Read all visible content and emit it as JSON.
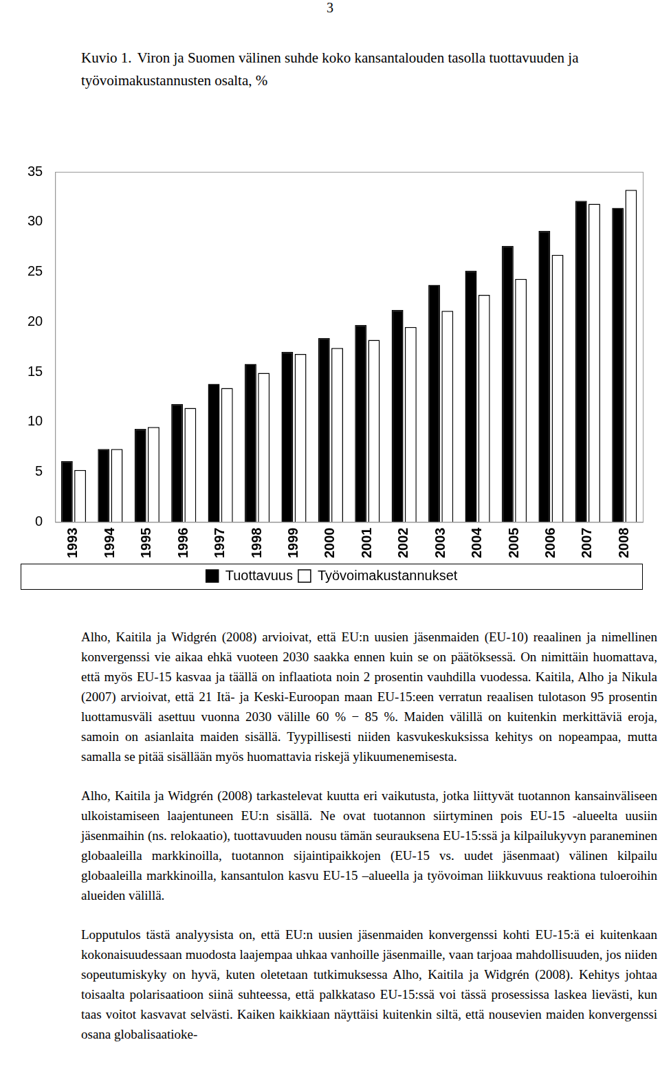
{
  "page": {
    "number": "3"
  },
  "caption": {
    "label": "Kuvio 1.",
    "text": "Viron ja Suomen välinen suhde koko kansantalouden tasolla tuottavuuden ja työvoimakustannusten osalta, %"
  },
  "chart_data": {
    "type": "bar",
    "categories": [
      "1993",
      "1994",
      "1995",
      "1996",
      "1997",
      "1998",
      "1999",
      "2000",
      "2001",
      "2002",
      "2003",
      "2004",
      "2005",
      "2006",
      "2007",
      "2008"
    ],
    "series": [
      {
        "name": "Tuottavuus",
        "color": "#000000",
        "values": [
          6.1,
          7.3,
          9.3,
          11.8,
          13.8,
          15.8,
          17.0,
          18.4,
          19.7,
          21.2,
          23.7,
          25.1,
          27.6,
          29.1,
          32.1,
          31.4
        ]
      },
      {
        "name": "Työvoimakustannukset",
        "color": "#ffffff",
        "values": [
          5.2,
          7.3,
          9.5,
          11.4,
          13.4,
          14.9,
          16.8,
          17.4,
          18.2,
          19.5,
          21.1,
          22.7,
          24.3,
          26.7,
          31.8,
          33.2
        ]
      }
    ],
    "ylim": [
      0,
      35
    ],
    "yticks": [
      0,
      5,
      10,
      15,
      20,
      25,
      30,
      35
    ],
    "grid": false,
    "legend": "bottom"
  },
  "paragraphs": [
    "Alho, Kaitila ja Widgrén (2008) arvioivat, että EU:n uusien jäsenmaiden (EU-10) reaalinen ja nimellinen konvergenssi vie aikaa ehkä vuoteen 2030 saakka ennen kuin se on päätöksessä. On nimittäin huomattava, että myös EU-15 kasvaa ja täällä on inflaatiota noin 2 prosentin vauhdilla vuodessa. Kaitila, Alho ja Nikula (2007) arvioivat, että 21 Itä- ja Keski-Euroopan maan EU-15:een verratun reaalisen tulotason 95 prosentin luottamusväli asettuu vuonna 2030 välille 60 % − 85 %. Maiden välillä on kuitenkin merkittäviä eroja, samoin on asianlaita maiden sisällä. Tyypillisesti niiden kasvukeskuksissa kehitys on nopeampaa, mutta samalla se pitää sisällään myös huomattavia riskejä ylikuumenemisesta.",
    "Alho, Kaitila ja Widgrén (2008) tarkastelevat kuutta eri vaikutusta, jotka liittyvät tuotannon kansainväliseen ulkoistamiseen laajentuneen EU:n sisällä. Ne ovat tuotannon siirtyminen pois EU-15 -alueelta uusiin jäsenmaihin (ns. relokaatio), tuottavuuden nousu tämän seurauksena EU-15:ssä ja kilpailukyvyn paraneminen globaaleilla markkinoilla, tuotannon sijaintipaikkojen (EU-15 vs. uudet jäsenmaat) välinen kilpailu globaaleilla markkinoilla, kansantulon kasvu EU-15 –alueella ja työvoiman liikkuvuus reaktiona tuloeroihin alueiden välillä.",
    "Lopputulos tästä analyysista on, että EU:n uusien jäsenmaiden konvergenssi kohti EU-15:ä ei kuitenkaan kokonaisuudessaan muodosta laajempaa uhkaa vanhoille jäsenmaille, vaan tarjoaa mahdollisuuden, jos niiden sopeutumiskyky on hyvä, kuten oletetaan tutkimuksessa Alho, Kaitila ja Widgrén (2008). Kehitys johtaa toisaalta polarisaatioon siinä suhteessa, että palkkataso EU-15:ssä voi tässä prosessissa laskea lievästi, kun taas voitot kasvavat selvästi. Kaiken kaikkiaan näyttäisi kuitenkin siltä, että nousevien maiden konvergenssi osana globalisaatioke-"
  ]
}
